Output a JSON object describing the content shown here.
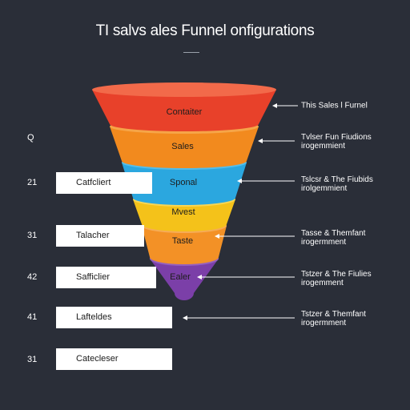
{
  "title": "TI salvs ales Funnel onfigurations",
  "stages": [
    {
      "label": "Contaiter",
      "color": "#e8412a",
      "rim": "#f26a4a"
    },
    {
      "label": "Sales",
      "color": "#f28a1e",
      "rim": "#f6a548"
    },
    {
      "label": "Sponal",
      "color": "#2ba7df",
      "rim": "#55bde9"
    },
    {
      "label": "Mvest",
      "color": "#f4c21a",
      "rim": "#f8d655"
    },
    {
      "label": "Taste",
      "color": "#f39126",
      "rim": "#f6ac55"
    },
    {
      "label": "Ealer",
      "color": "#7b3fa8",
      "rim": "#9560bf"
    }
  ],
  "rows": [
    {
      "num": "Q",
      "label": ""
    },
    {
      "num": "21",
      "label": "Catfcliert"
    },
    {
      "num": "31",
      "label": "Talacher"
    },
    {
      "num": "42",
      "label": "Safficlier"
    },
    {
      "num": "41",
      "label": "Lafteldes"
    },
    {
      "num": "31",
      "label": "Catecleser"
    }
  ],
  "side_labels": [
    {
      "line1": "This Sales l Furnel",
      "line2": ""
    },
    {
      "line1": "Tvlser Fun Fiudions",
      "line2": "irogemmient"
    },
    {
      "line1": "Tslcsr & The Fiubids",
      "line2": "irolgemmient"
    },
    {
      "line1": "Tasse & Themfant",
      "line2": "irogermment"
    },
    {
      "line1": "Tstzer & The Fiulies",
      "line2": "irogemment"
    },
    {
      "line1": "Tstzer & Themfant",
      "line2": "irogermment"
    }
  ]
}
